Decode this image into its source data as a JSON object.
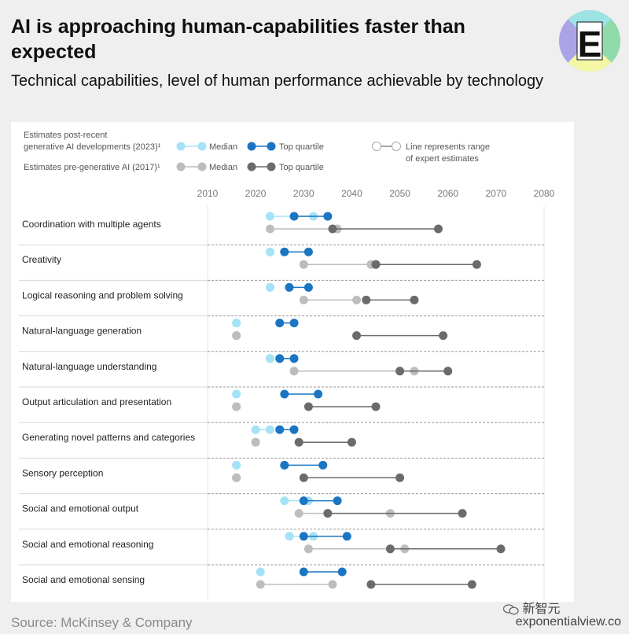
{
  "header": {
    "title": "AI is approaching human-capabilities faster than expected",
    "subtitle": "Technical capabilities, level of human performance achievable by technology"
  },
  "logo": {
    "letter": "E",
    "icon": "exponential-view-logo-icon"
  },
  "legend": {
    "post_label_line1": "Estimates post-recent",
    "post_label_line2": "generative AI developments (2023)¹",
    "pre_label": "Estimates pre-generative AI (2017)¹",
    "median": "Median",
    "top_quartile": "Top quartile",
    "range_line1": "Line represents range",
    "range_line2": "of expert estimates"
  },
  "colors": {
    "post_median": "#a6e2f5",
    "post_top": "#1a75c2",
    "pre_median": "#bdbdbd",
    "pre_top": "#6b6b6b"
  },
  "chart_data": {
    "type": "dumbbell",
    "xlim": [
      2010,
      2080
    ],
    "xticks": [
      2010,
      2020,
      2030,
      2040,
      2050,
      2060,
      2070,
      2080
    ],
    "series": [
      {
        "name": "Estimates post-recent generative AI developments (2023) – Median"
      },
      {
        "name": "Estimates post-recent generative AI developments (2023) – Top quartile"
      },
      {
        "name": "Estimates pre-generative AI (2017) – Median"
      },
      {
        "name": "Estimates pre-generative AI (2017) – Top quartile"
      }
    ],
    "categories": [
      {
        "label": "Coordination with multiple agents",
        "post_median": [
          2023,
          2032
        ],
        "post_top": [
          2028,
          2035
        ],
        "pre_median": [
          2023,
          2037
        ],
        "pre_top": [
          2036,
          2058
        ]
      },
      {
        "label": "Creativity",
        "post_median": [
          2023,
          2023
        ],
        "post_top": [
          2026,
          2031
        ],
        "pre_median": [
          2030,
          2044
        ],
        "pre_top": [
          2045,
          2066
        ]
      },
      {
        "label": "Logical reasoning and problem solving",
        "post_median": [
          2023,
          2023
        ],
        "post_top": [
          2027,
          2031
        ],
        "pre_median": [
          2030,
          2041
        ],
        "pre_top": [
          2043,
          2053
        ]
      },
      {
        "label": "Natural-language generation",
        "post_median": [
          2016,
          2016
        ],
        "post_top": [
          2025,
          2028
        ],
        "pre_median": [
          2016,
          2016
        ],
        "pre_top": [
          2041,
          2059
        ]
      },
      {
        "label": "Natural-language understanding",
        "post_median": [
          2023,
          2023
        ],
        "post_top": [
          2025,
          2028
        ],
        "pre_median": [
          2028,
          2053
        ],
        "pre_top": [
          2050,
          2060
        ]
      },
      {
        "label": "Output articulation and presentation",
        "post_median": [
          2016,
          2016
        ],
        "post_top": [
          2026,
          2033
        ],
        "pre_median": [
          2016,
          2016
        ],
        "pre_top": [
          2031,
          2045
        ]
      },
      {
        "label": "Generating novel patterns and categories",
        "post_median": [
          2020,
          2023
        ],
        "post_top": [
          2025,
          2028
        ],
        "pre_median": [
          2020,
          2020
        ],
        "pre_top": [
          2029,
          2040
        ]
      },
      {
        "label": "Sensory perception",
        "post_median": [
          2016,
          2016
        ],
        "post_top": [
          2026,
          2034
        ],
        "pre_median": [
          2016,
          2016
        ],
        "pre_top": [
          2030,
          2050
        ]
      },
      {
        "label": "Social and emotional output",
        "post_median": [
          2026,
          2031
        ],
        "post_top": [
          2030,
          2037
        ],
        "pre_median": [
          2029,
          2048
        ],
        "pre_top": [
          2035,
          2063
        ]
      },
      {
        "label": "Social and emotional reasoning",
        "post_median": [
          2027,
          2032
        ],
        "post_top": [
          2030,
          2039
        ],
        "pre_median": [
          2031,
          2051
        ],
        "pre_top": [
          2048,
          2071
        ]
      },
      {
        "label": "Social and emotional sensing",
        "post_median": [
          2021,
          2021
        ],
        "post_top": [
          2030,
          2038
        ],
        "pre_median": [
          2021,
          2036
        ],
        "pre_top": [
          2044,
          2065
        ]
      }
    ]
  },
  "footer": {
    "source": "Source: McKinsey & Company",
    "wechat": "新智元",
    "site": "exponentialview.co"
  }
}
